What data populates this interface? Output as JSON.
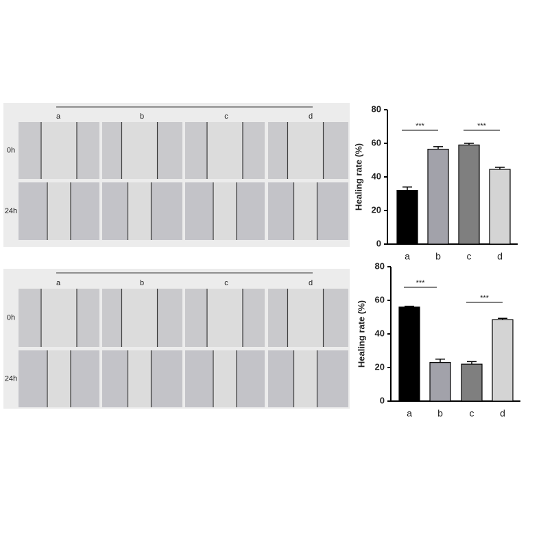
{
  "panels": [
    {
      "columns": [
        "a",
        "b",
        "c",
        "d"
      ],
      "rows": [
        "0h",
        "24h"
      ]
    },
    {
      "columns": [
        "a",
        "b",
        "c",
        "d"
      ],
      "rows": [
        "0h",
        "24h"
      ]
    }
  ],
  "chart_data": [
    {
      "type": "bar",
      "y_label": "Healing rate (%)",
      "categories": [
        "a",
        "b",
        "c",
        "d"
      ],
      "values": [
        32,
        56.5,
        59,
        44.5
      ],
      "errors": [
        2,
        1.5,
        1,
        1.2
      ],
      "colors": [
        "#000000",
        "#a2a2aa",
        "#7f7f7f",
        "#d4d4d4"
      ],
      "ylim": [
        0,
        80
      ],
      "yticks": [
        0,
        20,
        40,
        60,
        80
      ],
      "annotations": [
        "***",
        "***"
      ]
    },
    {
      "type": "bar",
      "y_label": "Healing rate (%)",
      "categories": [
        "a",
        "b",
        "c",
        "d"
      ],
      "values": [
        56,
        23,
        22,
        48.5
      ],
      "errors": [
        0.5,
        2,
        1.5,
        0.8
      ],
      "colors": [
        "#000000",
        "#a2a2aa",
        "#7f7f7f",
        "#d4d4d4"
      ],
      "ylim": [
        0,
        80
      ],
      "yticks": [
        0,
        20,
        40,
        60,
        80
      ],
      "annotations": [
        "***",
        "***"
      ]
    }
  ]
}
